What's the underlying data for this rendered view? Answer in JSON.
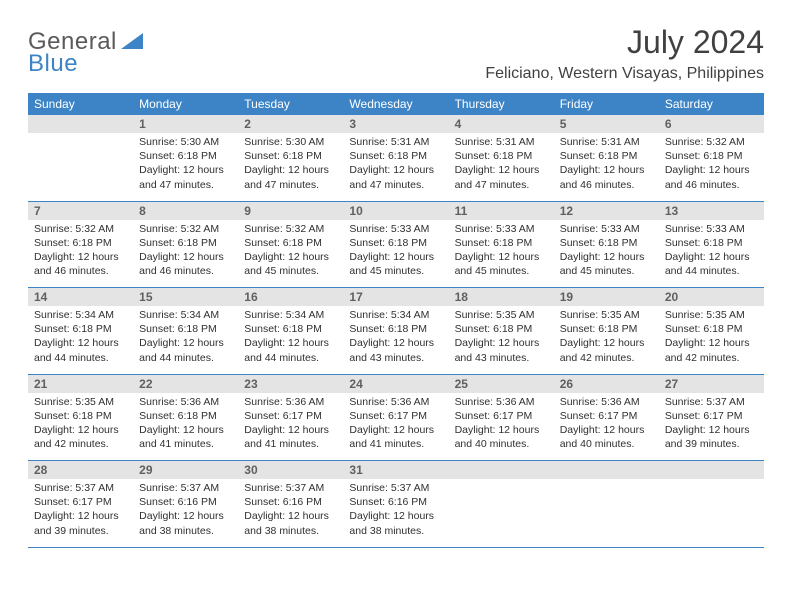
{
  "logo": {
    "part1": "General",
    "part2": "Blue"
  },
  "title": "July 2024",
  "location": "Feliciano, Western Visayas, Philippines",
  "colors": {
    "header_bg": "#3d84c6",
    "header_fg": "#ffffff",
    "daynum_bg": "#e4e4e4",
    "daynum_fg": "#606060",
    "text": "#303030",
    "rule": "#3d84c6"
  },
  "day_headers": [
    "Sunday",
    "Monday",
    "Tuesday",
    "Wednesday",
    "Thursday",
    "Friday",
    "Saturday"
  ],
  "weeks": [
    {
      "nums": [
        "",
        "1",
        "2",
        "3",
        "4",
        "5",
        "6"
      ],
      "cells": [
        [],
        [
          "Sunrise: 5:30 AM",
          "Sunset: 6:18 PM",
          "Daylight: 12 hours",
          "and 47 minutes."
        ],
        [
          "Sunrise: 5:30 AM",
          "Sunset: 6:18 PM",
          "Daylight: 12 hours",
          "and 47 minutes."
        ],
        [
          "Sunrise: 5:31 AM",
          "Sunset: 6:18 PM",
          "Daylight: 12 hours",
          "and 47 minutes."
        ],
        [
          "Sunrise: 5:31 AM",
          "Sunset: 6:18 PM",
          "Daylight: 12 hours",
          "and 47 minutes."
        ],
        [
          "Sunrise: 5:31 AM",
          "Sunset: 6:18 PM",
          "Daylight: 12 hours",
          "and 46 minutes."
        ],
        [
          "Sunrise: 5:32 AM",
          "Sunset: 6:18 PM",
          "Daylight: 12 hours",
          "and 46 minutes."
        ]
      ]
    },
    {
      "nums": [
        "7",
        "8",
        "9",
        "10",
        "11",
        "12",
        "13"
      ],
      "cells": [
        [
          "Sunrise: 5:32 AM",
          "Sunset: 6:18 PM",
          "Daylight: 12 hours",
          "and 46 minutes."
        ],
        [
          "Sunrise: 5:32 AM",
          "Sunset: 6:18 PM",
          "Daylight: 12 hours",
          "and 46 minutes."
        ],
        [
          "Sunrise: 5:32 AM",
          "Sunset: 6:18 PM",
          "Daylight: 12 hours",
          "and 45 minutes."
        ],
        [
          "Sunrise: 5:33 AM",
          "Sunset: 6:18 PM",
          "Daylight: 12 hours",
          "and 45 minutes."
        ],
        [
          "Sunrise: 5:33 AM",
          "Sunset: 6:18 PM",
          "Daylight: 12 hours",
          "and 45 minutes."
        ],
        [
          "Sunrise: 5:33 AM",
          "Sunset: 6:18 PM",
          "Daylight: 12 hours",
          "and 45 minutes."
        ],
        [
          "Sunrise: 5:33 AM",
          "Sunset: 6:18 PM",
          "Daylight: 12 hours",
          "and 44 minutes."
        ]
      ]
    },
    {
      "nums": [
        "14",
        "15",
        "16",
        "17",
        "18",
        "19",
        "20"
      ],
      "cells": [
        [
          "Sunrise: 5:34 AM",
          "Sunset: 6:18 PM",
          "Daylight: 12 hours",
          "and 44 minutes."
        ],
        [
          "Sunrise: 5:34 AM",
          "Sunset: 6:18 PM",
          "Daylight: 12 hours",
          "and 44 minutes."
        ],
        [
          "Sunrise: 5:34 AM",
          "Sunset: 6:18 PM",
          "Daylight: 12 hours",
          "and 44 minutes."
        ],
        [
          "Sunrise: 5:34 AM",
          "Sunset: 6:18 PM",
          "Daylight: 12 hours",
          "and 43 minutes."
        ],
        [
          "Sunrise: 5:35 AM",
          "Sunset: 6:18 PM",
          "Daylight: 12 hours",
          "and 43 minutes."
        ],
        [
          "Sunrise: 5:35 AM",
          "Sunset: 6:18 PM",
          "Daylight: 12 hours",
          "and 42 minutes."
        ],
        [
          "Sunrise: 5:35 AM",
          "Sunset: 6:18 PM",
          "Daylight: 12 hours",
          "and 42 minutes."
        ]
      ]
    },
    {
      "nums": [
        "21",
        "22",
        "23",
        "24",
        "25",
        "26",
        "27"
      ],
      "cells": [
        [
          "Sunrise: 5:35 AM",
          "Sunset: 6:18 PM",
          "Daylight: 12 hours",
          "and 42 minutes."
        ],
        [
          "Sunrise: 5:36 AM",
          "Sunset: 6:18 PM",
          "Daylight: 12 hours",
          "and 41 minutes."
        ],
        [
          "Sunrise: 5:36 AM",
          "Sunset: 6:17 PM",
          "Daylight: 12 hours",
          "and 41 minutes."
        ],
        [
          "Sunrise: 5:36 AM",
          "Sunset: 6:17 PM",
          "Daylight: 12 hours",
          "and 41 minutes."
        ],
        [
          "Sunrise: 5:36 AM",
          "Sunset: 6:17 PM",
          "Daylight: 12 hours",
          "and 40 minutes."
        ],
        [
          "Sunrise: 5:36 AM",
          "Sunset: 6:17 PM",
          "Daylight: 12 hours",
          "and 40 minutes."
        ],
        [
          "Sunrise: 5:37 AM",
          "Sunset: 6:17 PM",
          "Daylight: 12 hours",
          "and 39 minutes."
        ]
      ]
    },
    {
      "nums": [
        "28",
        "29",
        "30",
        "31",
        "",
        "",
        ""
      ],
      "cells": [
        [
          "Sunrise: 5:37 AM",
          "Sunset: 6:17 PM",
          "Daylight: 12 hours",
          "and 39 minutes."
        ],
        [
          "Sunrise: 5:37 AM",
          "Sunset: 6:16 PM",
          "Daylight: 12 hours",
          "and 38 minutes."
        ],
        [
          "Sunrise: 5:37 AM",
          "Sunset: 6:16 PM",
          "Daylight: 12 hours",
          "and 38 minutes."
        ],
        [
          "Sunrise: 5:37 AM",
          "Sunset: 6:16 PM",
          "Daylight: 12 hours",
          "and 38 minutes."
        ],
        [],
        [],
        []
      ]
    }
  ]
}
